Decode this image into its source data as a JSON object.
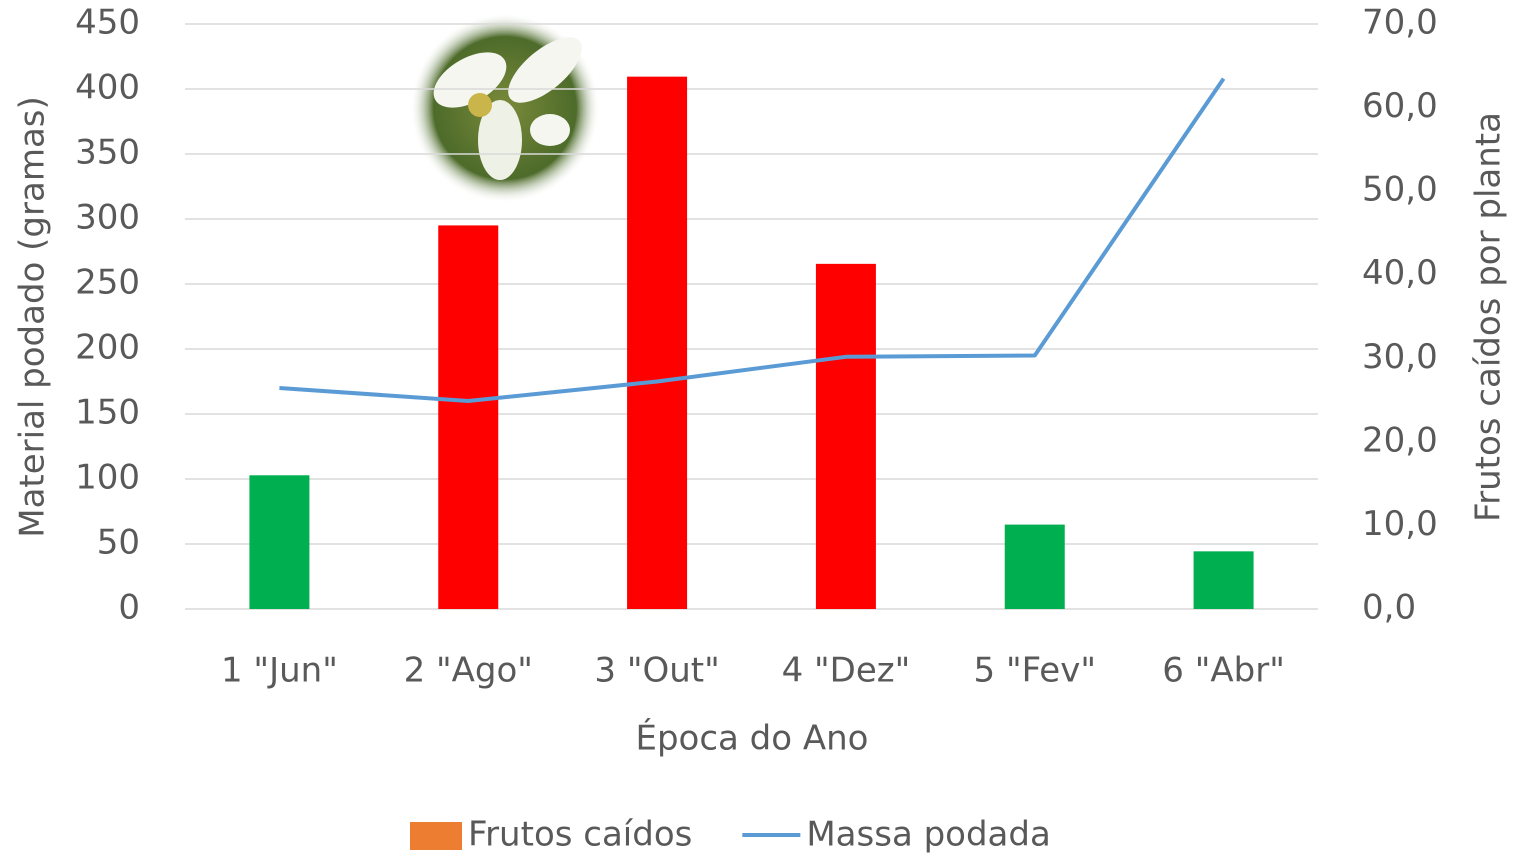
{
  "chart_data": {
    "type": "bar_line",
    "categories": [
      "1 \"Jun\"",
      "2 \"Ago\"",
      "3 \"Out\"",
      "4 \"Dez\"",
      "5 \"Fev\"",
      "6 \"Abr\""
    ],
    "x_label": "Época do Ano",
    "y_label": "Material podado (gramas)",
    "y2_label": "Frutos caídos por planta",
    "ylim": [
      0,
      450
    ],
    "yticks": [
      0,
      50,
      100,
      150,
      200,
      250,
      300,
      350,
      400,
      450
    ],
    "y2lim": [
      0,
      70
    ],
    "y2ticks": [
      {
        "value": 0,
        "label": "0,0"
      },
      {
        "value": 10,
        "label": "10,0"
      },
      {
        "value": 20,
        "label": "20,0"
      },
      {
        "value": 30,
        "label": "30,0"
      },
      {
        "value": 40,
        "label": "40,0"
      },
      {
        "value": 50,
        "label": "50,0"
      },
      {
        "value": 60,
        "label": "60,0"
      },
      {
        "value": 70,
        "label": "70,0"
      }
    ],
    "grid": true,
    "series": [
      {
        "name": "Frutos caídos",
        "type": "bar",
        "axis": "y2",
        "color": "#ed7d31",
        "bar_colors": [
          "#00b050",
          "#ff0000",
          "#ff0000",
          "#ff0000",
          "#00b050",
          "#00b050"
        ],
        "values": [
          16.0,
          45.9,
          63.7,
          41.3,
          10.1,
          6.9
        ]
      },
      {
        "name": "Massa podada",
        "type": "line",
        "axis": "y",
        "color": "#5b9bd5",
        "values": [
          170,
          160,
          175,
          194,
          195,
          408
        ]
      }
    ],
    "legend": "bottom"
  }
}
